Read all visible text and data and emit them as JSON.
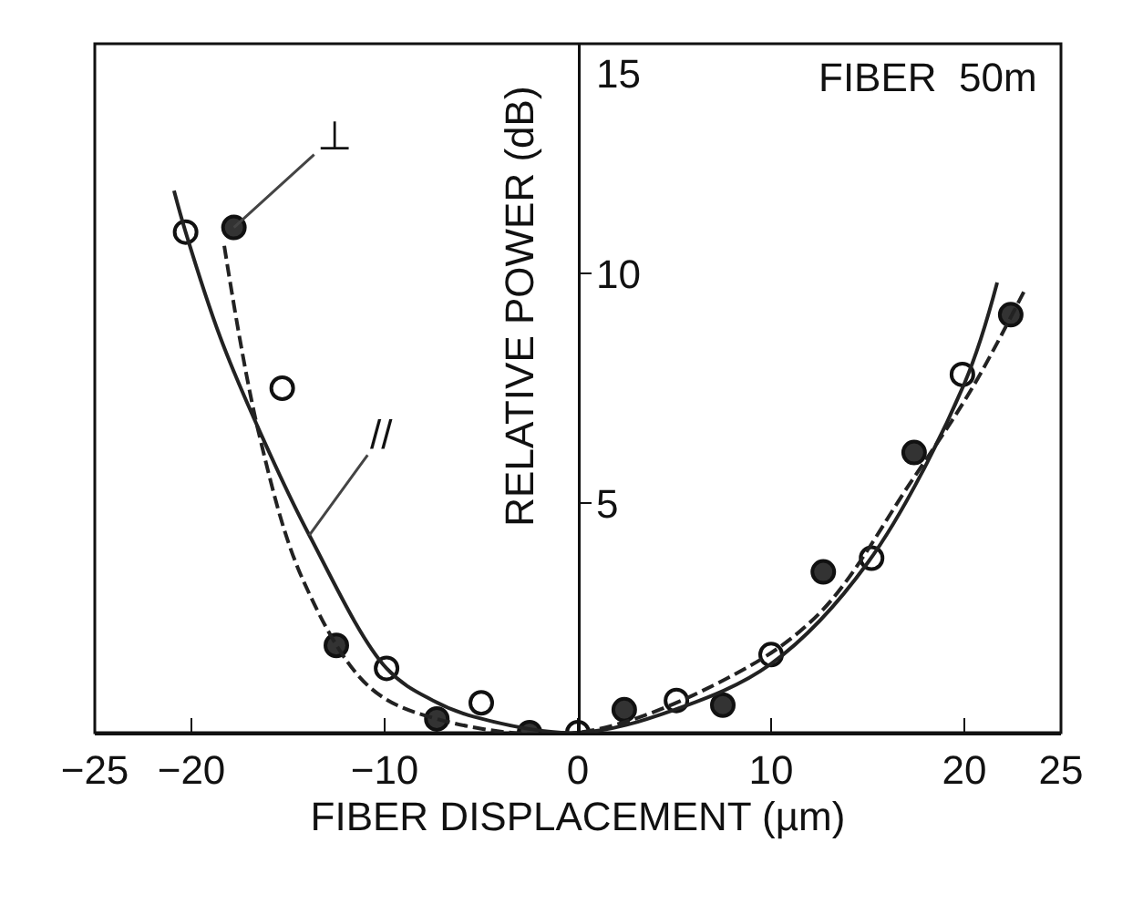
{
  "chart_data": {
    "type": "scatter",
    "xlabel": "FIBER DISPLACEMENT (µm)",
    "ylabel": "RELATIVE POWER (dB)",
    "annotations": [
      "FIBER  50m"
    ],
    "xlim": [
      -25,
      25
    ],
    "xticks": [
      -25,
      -20,
      -10,
      0,
      10,
      20,
      25
    ],
    "ylim": [
      0,
      15
    ],
    "yticks": [
      5,
      10,
      15
    ],
    "grid": false,
    "legend": false,
    "series": [
      {
        "marker": "circle",
        "color": "#ffffff",
        "x": [
          -20.3,
          -15.3,
          -9.9,
          -5.0,
          0,
          5.1,
          10.0,
          15.2,
          19.9
        ],
        "values": [
          10.9,
          7.5,
          1.4,
          0.65,
          0,
          0.7,
          1.7,
          3.8,
          7.8
        ]
      },
      {
        "name": "⊥",
        "marker": "circle",
        "color": "#333333",
        "x": [
          -17.8,
          -12.5,
          -7.3,
          -2.5,
          2.4,
          7.5,
          12.7,
          17.4,
          22.4
        ],
        "values": [
          11.0,
          1.9,
          0.3,
          0,
          0.5,
          0.6,
          3.5,
          6.1,
          9.1
        ]
      },
      {
        "type": "line",
        "name": "//",
        "line_style": "solid",
        "color": "#222222",
        "x": [
          -20.9,
          -20.3,
          -18.5,
          -16.4,
          -13.9,
          -9.9,
          -7.5,
          -5.4,
          0,
          5,
          10,
          15,
          20,
          21.7
        ],
        "values": [
          11.8,
          10.9,
          8.6,
          6.5,
          4.3,
          1.4,
          0.7,
          0.35,
          0,
          0.5,
          1.5,
          3.7,
          7.6,
          9.8
        ]
      },
      {
        "type": "line",
        "line_style": "dashed",
        "color": "#222222",
        "x": [
          -18.3,
          -16.5,
          -14.2,
          -10.8,
          -7.3,
          0,
          7.8,
          12.5,
          17.3,
          20.4,
          23.2
        ],
        "values": [
          10.6,
          6.5,
          3.3,
          1.0,
          0.3,
          0,
          1.2,
          2.6,
          5.5,
          7.5,
          9.7
        ]
      }
    ]
  }
}
